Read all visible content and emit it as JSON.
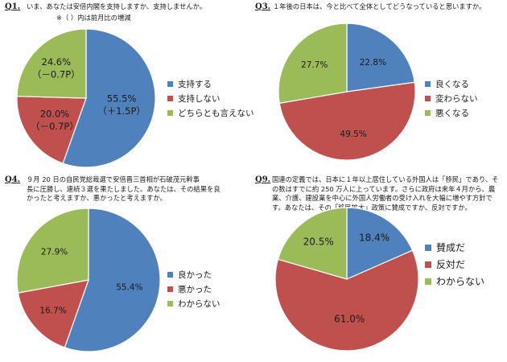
{
  "colors": {
    "blue": "#4f81bd",
    "red": "#c0504d",
    "green": "#9bbb59"
  },
  "panels": [
    {
      "qnum": "Q1.",
      "qlines": [
        "いま、あなたは安倍内閣を支持しますか、支持しませんか。"
      ],
      "note": "※（ ）内は前月比の増減"
    },
    {
      "qnum": "Q3.",
      "qlines": [
        "１年後の日本は、今と比べて全体としてどうなっていると思いますか。"
      ]
    },
    {
      "qnum": "Q4.",
      "qlines": [
        "９月 20 日の自民党総裁選で安倍晋三首相が石破茂元幹事",
        "長に圧勝し、連続３選を果たしました。あなたは、その結果を良",
        "かったと考えますか、悪かったと考えますか。"
      ]
    },
    {
      "qnum": "Q9.",
      "qlines": [
        "国連の定義では、日本に１年以上居住している外国人は「移民」であり、そ",
        "の数はすでに約 250 万人に上っています。さらに政府は来年４月から、農",
        "業、介護、建設業を中心に外国人労働者の受け入れを大幅に増やす方針で",
        "す。あなたは、その「移民拡大」政策に賛成ですか、反対ですか。"
      ]
    }
  ],
  "chart_data": [
    {
      "type": "pie",
      "title": "いま、あなたは安倍内閣を支持しますか、支持しませんか。",
      "categories": [
        "支持する",
        "支持しない",
        "どちらとも言えない"
      ],
      "values": [
        55.5,
        20.0,
        24.6
      ],
      "changes": [
        "（＋1.5P）",
        "（－0.7P）",
        "（－0.7P）"
      ],
      "labels": [
        "55.5%",
        "20.0%",
        "24.6%"
      ],
      "unit": "%",
      "legend": "right"
    },
    {
      "type": "pie",
      "title": "１年後の日本は、今と比べて全体としてどうなっていると思いますか。",
      "categories": [
        "良くなる",
        "変わらない",
        "悪くなる"
      ],
      "values": [
        22.8,
        49.5,
        27.7
      ],
      "labels": [
        "22.8%",
        "49.5%",
        "27.7%"
      ],
      "unit": "%",
      "legend": "right"
    },
    {
      "type": "pie",
      "title": "９月 20 日の自民党総裁選で安倍晋三首相が石破茂元幹事長に圧勝し、連続３選を果たしました。あなたは、その結果を良かったと考えますか、悪かったと考えますか。",
      "categories": [
        "良かった",
        "悪かった",
        "わからない"
      ],
      "values": [
        55.4,
        16.7,
        27.9
      ],
      "labels": [
        "55.4%",
        "16.7%",
        "27.9%"
      ],
      "unit": "%",
      "legend": "right"
    },
    {
      "type": "pie",
      "title": "国連の定義では、日本に１年以上居住している外国人は「移民」であり、その数はすでに約 250 万人に上っています。さらに政府は来年４月から、農業、介護、建設業を中心に外国人労働者の受け入れを大幅に増やす方針です。あなたは、その「移民拡大」政策に賛成ですか、反対ですか。",
      "categories": [
        "賛成だ",
        "反対だ",
        "わからない"
      ],
      "values": [
        18.4,
        61.0,
        20.5
      ],
      "labels": [
        "18.4%",
        "61.0%",
        "20.5%"
      ],
      "unit": "%",
      "legend": "right"
    }
  ]
}
